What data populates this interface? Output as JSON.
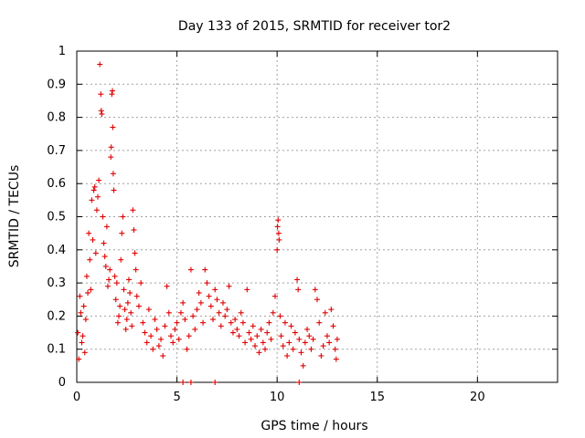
{
  "chart_data": {
    "type": "scatter",
    "title": "Day 133 of 2015, SRMTID for receiver tor2",
    "xlabel": "GPS time / hours",
    "ylabel": "SRMTID / TECUs",
    "xlim": [
      0,
      24
    ],
    "ylim": [
      0,
      1
    ],
    "x_ticks": [
      0,
      5,
      10,
      15,
      20
    ],
    "x_tick_labels": [
      "0",
      "5",
      "10",
      "15",
      "20"
    ],
    "y_ticks": [
      0,
      0.1,
      0.2,
      0.3,
      0.4,
      0.5,
      0.6,
      0.7,
      0.8,
      0.9,
      1
    ],
    "y_tick_labels": [
      "0",
      "0.1",
      "0.2",
      "0.3",
      "0.4",
      "0.5",
      "0.6",
      "0.7",
      "0.8",
      "0.9",
      "1"
    ],
    "grid": true,
    "marker": "+",
    "marker_color": "#e00000",
    "series": [
      {
        "name": "SRMTID",
        "points": [
          [
            0.05,
            0.15
          ],
          [
            0.1,
            0.07
          ],
          [
            0.15,
            0.26
          ],
          [
            0.2,
            0.21
          ],
          [
            0.25,
            0.12
          ],
          [
            0.3,
            0.14
          ],
          [
            0.35,
            0.23
          ],
          [
            0.4,
            0.09
          ],
          [
            0.45,
            0.19
          ],
          [
            0.5,
            0.32
          ],
          [
            0.55,
            0.27
          ],
          [
            0.6,
            0.45
          ],
          [
            0.65,
            0.37
          ],
          [
            0.7,
            0.28
          ],
          [
            0.75,
            0.55
          ],
          [
            0.8,
            0.43
          ],
          [
            0.85,
            0.58
          ],
          [
            0.9,
            0.59
          ],
          [
            0.95,
            0.39
          ],
          [
            1.0,
            0.52
          ],
          [
            1.05,
            0.56
          ],
          [
            1.1,
            0.61
          ],
          [
            1.15,
            0.96
          ],
          [
            1.2,
            0.87
          ],
          [
            1.22,
            0.82
          ],
          [
            1.25,
            0.81
          ],
          [
            1.3,
            0.5
          ],
          [
            1.35,
            0.42
          ],
          [
            1.4,
            0.38
          ],
          [
            1.45,
            0.35
          ],
          [
            1.5,
            0.47
          ],
          [
            1.55,
            0.29
          ],
          [
            1.6,
            0.31
          ],
          [
            1.65,
            0.34
          ],
          [
            1.7,
            0.68
          ],
          [
            1.72,
            0.71
          ],
          [
            1.75,
            0.87
          ],
          [
            1.78,
            0.88
          ],
          [
            1.8,
            0.77
          ],
          [
            1.82,
            0.63
          ],
          [
            1.85,
            0.58
          ],
          [
            1.9,
            0.32
          ],
          [
            1.95,
            0.25
          ],
          [
            2.0,
            0.3
          ],
          [
            2.05,
            0.18
          ],
          [
            2.1,
            0.2
          ],
          [
            2.15,
            0.23
          ],
          [
            2.2,
            0.37
          ],
          [
            2.25,
            0.45
          ],
          [
            2.3,
            0.5
          ],
          [
            2.35,
            0.28
          ],
          [
            2.4,
            0.22
          ],
          [
            2.45,
            0.16
          ],
          [
            2.5,
            0.19
          ],
          [
            2.55,
            0.24
          ],
          [
            2.6,
            0.31
          ],
          [
            2.65,
            0.27
          ],
          [
            2.7,
            0.21
          ],
          [
            2.75,
            0.17
          ],
          [
            2.8,
            0.52
          ],
          [
            2.85,
            0.46
          ],
          [
            2.9,
            0.39
          ],
          [
            2.95,
            0.34
          ],
          [
            3.0,
            0.26
          ],
          [
            3.1,
            0.23
          ],
          [
            3.2,
            0.3
          ],
          [
            3.3,
            0.18
          ],
          [
            3.4,
            0.15
          ],
          [
            3.5,
            0.12
          ],
          [
            3.6,
            0.22
          ],
          [
            3.7,
            0.14
          ],
          [
            3.8,
            0.1
          ],
          [
            3.9,
            0.19
          ],
          [
            4.0,
            0.16
          ],
          [
            4.1,
            0.11
          ],
          [
            4.2,
            0.13
          ],
          [
            4.3,
            0.08
          ],
          [
            4.4,
            0.17
          ],
          [
            4.5,
            0.29
          ],
          [
            4.6,
            0.21
          ],
          [
            4.7,
            0.14
          ],
          [
            4.8,
            0.12
          ],
          [
            4.9,
            0.16
          ],
          [
            5.0,
            0.18
          ],
          [
            5.1,
            0.13
          ],
          [
            5.2,
            0.21
          ],
          [
            5.3,
            0.24
          ],
          [
            5.4,
            0.19
          ],
          [
            5.5,
            0.1
          ],
          [
            5.6,
            0.14
          ],
          [
            5.7,
            0.34
          ],
          [
            5.8,
            0.2
          ],
          [
            5.9,
            0.16
          ],
          [
            6.0,
            0.22
          ],
          [
            6.1,
            0.27
          ],
          [
            6.2,
            0.24
          ],
          [
            6.3,
            0.18
          ],
          [
            6.4,
            0.34
          ],
          [
            6.5,
            0.3
          ],
          [
            6.6,
            0.26
          ],
          [
            6.7,
            0.23
          ],
          [
            6.8,
            0.19
          ],
          [
            6.9,
            0.28
          ],
          [
            7.0,
            0.25
          ],
          [
            7.1,
            0.21
          ],
          [
            7.2,
            0.17
          ],
          [
            7.3,
            0.24
          ],
          [
            7.4,
            0.2
          ],
          [
            7.5,
            0.22
          ],
          [
            7.6,
            0.29
          ],
          [
            7.7,
            0.18
          ],
          [
            7.8,
            0.15
          ],
          [
            7.9,
            0.19
          ],
          [
            8.0,
            0.16
          ],
          [
            8.1,
            0.14
          ],
          [
            8.2,
            0.21
          ],
          [
            8.3,
            0.18
          ],
          [
            8.4,
            0.12
          ],
          [
            8.5,
            0.28
          ],
          [
            8.6,
            0.15
          ],
          [
            8.7,
            0.13
          ],
          [
            8.8,
            0.17
          ],
          [
            8.9,
            0.11
          ],
          [
            9.0,
            0.14
          ],
          [
            9.1,
            0.09
          ],
          [
            9.2,
            0.16
          ],
          [
            9.3,
            0.12
          ],
          [
            9.4,
            0.1
          ],
          [
            9.5,
            0.15
          ],
          [
            9.6,
            0.18
          ],
          [
            9.7,
            0.13
          ],
          [
            9.8,
            0.21
          ],
          [
            9.9,
            0.26
          ],
          [
            10.0,
            0.4
          ],
          [
            10.02,
            0.47
          ],
          [
            10.05,
            0.49
          ],
          [
            10.08,
            0.45
          ],
          [
            10.1,
            0.43
          ],
          [
            10.15,
            0.2
          ],
          [
            10.2,
            0.14
          ],
          [
            10.3,
            0.11
          ],
          [
            10.4,
            0.18
          ],
          [
            10.5,
            0.08
          ],
          [
            10.6,
            0.12
          ],
          [
            10.7,
            0.17
          ],
          [
            10.8,
            0.1
          ],
          [
            10.9,
            0.15
          ],
          [
            11.0,
            0.31
          ],
          [
            11.05,
            0.28
          ],
          [
            11.1,
            0.13
          ],
          [
            11.2,
            0.09
          ],
          [
            11.3,
            0.05
          ],
          [
            11.4,
            0.12
          ],
          [
            11.5,
            0.16
          ],
          [
            11.6,
            0.14
          ],
          [
            11.7,
            0.1
          ],
          [
            11.8,
            0.13
          ],
          [
            11.9,
            0.28
          ],
          [
            12.0,
            0.25
          ],
          [
            12.1,
            0.18
          ],
          [
            12.2,
            0.08
          ],
          [
            12.3,
            0.11
          ],
          [
            12.4,
            0.21
          ],
          [
            12.5,
            0.14
          ],
          [
            12.6,
            0.12
          ],
          [
            12.7,
            0.22
          ],
          [
            12.8,
            0.17
          ],
          [
            12.9,
            0.1
          ],
          [
            12.95,
            0.07
          ],
          [
            13.0,
            0.13
          ],
          [
            5.3,
            0.0
          ],
          [
            5.7,
            0.0
          ],
          [
            6.9,
            0.0
          ],
          [
            11.1,
            0.0
          ]
        ]
      }
    ]
  }
}
